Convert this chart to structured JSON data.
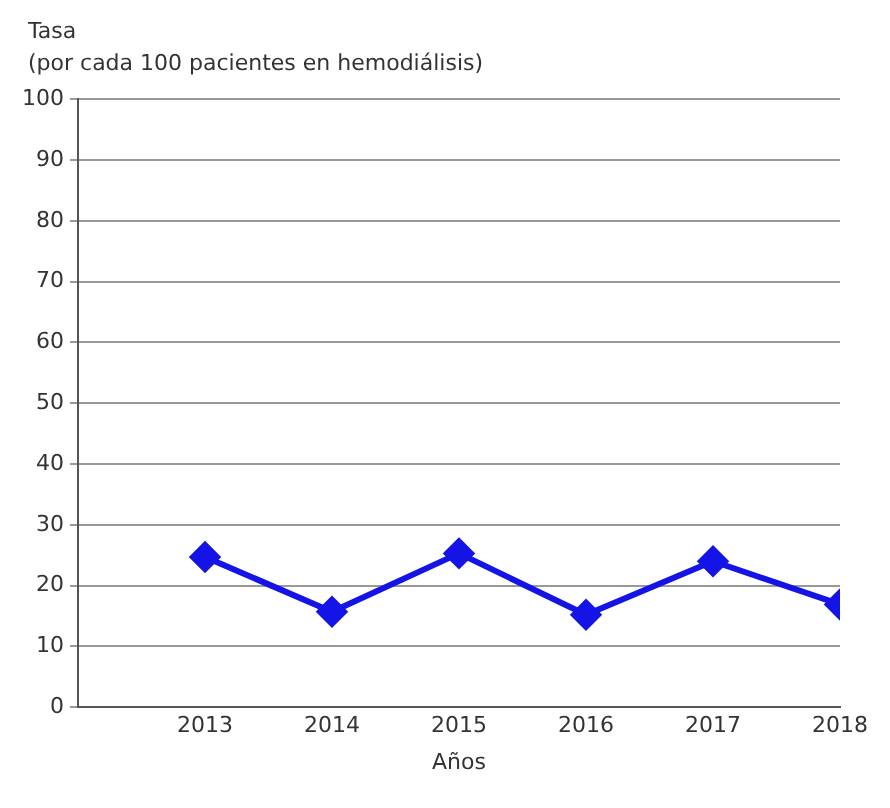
{
  "chart_data": {
    "type": "line",
    "ylabel": "Tasa\n(por cada 100 pacientes en hemodiálisis)",
    "xlabel": "Años",
    "x": [
      2013,
      2014,
      2015,
      2016,
      2017,
      2018
    ],
    "series": [
      {
        "color": "#1414e6",
        "values": [
          24.7,
          15.7,
          25.3,
          15.2,
          24,
          16.9
        ]
      }
    ],
    "xlim": [
      2012,
      2018
    ],
    "xticks": [
      2013,
      2014,
      2015,
      2016,
      2017,
      2018
    ],
    "ylim": [
      0,
      100
    ],
    "yticks": [
      0,
      10,
      20,
      30,
      40,
      50,
      60,
      70,
      80,
      90,
      100
    ],
    "grid": "y",
    "legend": false,
    "marker": "diamond",
    "line_style": "solid"
  }
}
